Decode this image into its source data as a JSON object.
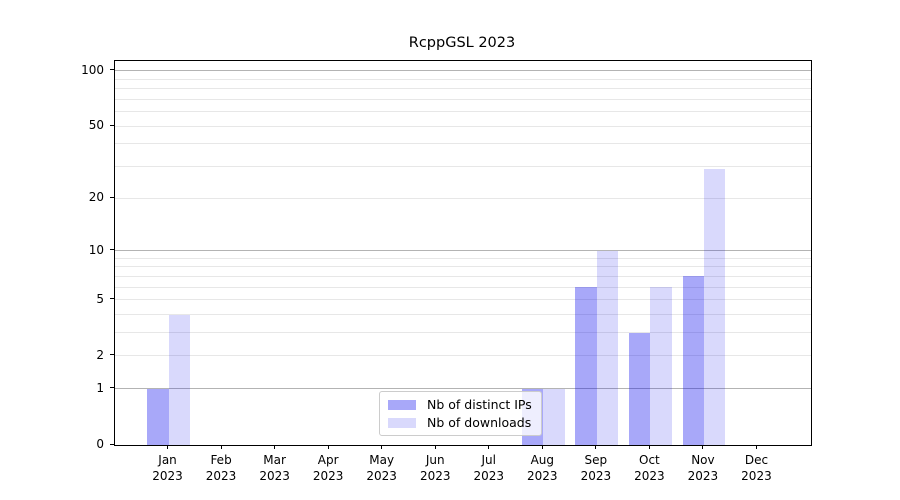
{
  "title": "RcppGSL 2023",
  "colors": {
    "bar_ips": "rgba(0,0,238,0.34)",
    "bar_downloads": "rgba(0,0,238,0.15)",
    "grid_major": "#b3b3b3",
    "grid_minor": "#e7e7e7",
    "legend_bg": "rgba(255,255,255,0.8)",
    "legend_border": "#cccccc",
    "axis": "#000000"
  },
  "legend": {
    "items": [
      {
        "label": "Nb of distinct IPs",
        "color_key": "bar_ips"
      },
      {
        "label": "Nb of downloads",
        "color_key": "bar_downloads"
      }
    ]
  },
  "chart_data": {
    "type": "bar",
    "title": "RcppGSL 2023",
    "categories": [
      "Jan",
      "Feb",
      "Mar",
      "Apr",
      "May",
      "Jun",
      "Jul",
      "Aug",
      "Sep",
      "Oct",
      "Nov",
      "Dec"
    ],
    "year_label": "2023",
    "series": [
      {
        "name": "Nb of distinct IPs",
        "color_key": "bar_ips",
        "values": [
          1,
          0,
          0,
          0,
          0,
          0,
          0,
          1,
          6,
          3,
          7,
          0
        ]
      },
      {
        "name": "Nb of downloads",
        "color_key": "bar_downloads",
        "values": [
          4,
          0,
          0,
          0,
          0,
          0,
          0,
          1,
          10,
          6,
          29,
          0
        ]
      }
    ],
    "xlabel": "",
    "ylabel": "",
    "y_scale": "log1p",
    "ylim": [
      0,
      113
    ],
    "y_ticks_labeled": [
      0,
      1,
      2,
      5,
      10,
      20,
      50,
      100
    ],
    "grid_major_values": [
      1,
      10,
      100
    ],
    "grid_minor_values": [
      2,
      3,
      4,
      5,
      6,
      7,
      8,
      9,
      20,
      30,
      40,
      50,
      60,
      70,
      80,
      90
    ],
    "grid": "on",
    "legend_position": "inside-bottom-center"
  }
}
